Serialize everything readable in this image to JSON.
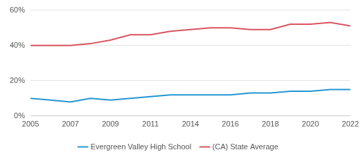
{
  "chart_data": {
    "type": "line",
    "categories": [
      "2005",
      null,
      "2007",
      null,
      "2009",
      null,
      "2011",
      null,
      "2014",
      null,
      "2016",
      null,
      "2018",
      null,
      "2020",
      null,
      "2022"
    ],
    "series": [
      {
        "name": "Evergreen Valley High School",
        "color": "#2196d3",
        "values": [
          10,
          9,
          8,
          10,
          9,
          10,
          11,
          12,
          12,
          12,
          12,
          13,
          13,
          14,
          14,
          15,
          15
        ]
      },
      {
        "name": "(CA) State Average",
        "color": "#d9535d",
        "values": [
          40,
          40,
          40,
          41,
          43,
          46,
          46,
          48,
          49,
          50,
          50,
          49,
          49,
          52,
          52,
          53,
          51
        ]
      }
    ],
    "ylim": [
      0,
      60
    ],
    "yticks": [
      {
        "value": 0,
        "label": "0%"
      },
      {
        "value": 20,
        "label": "20%"
      },
      {
        "value": 40,
        "label": "40%"
      },
      {
        "value": 60,
        "label": "60%"
      }
    ],
    "grid": true,
    "legend": "bottom"
  }
}
